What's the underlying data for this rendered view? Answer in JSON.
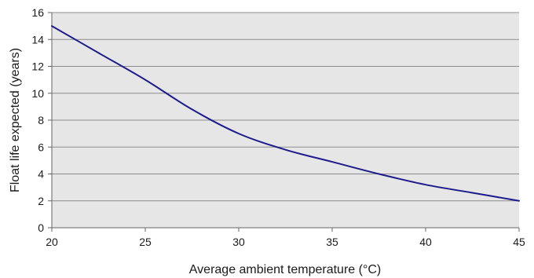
{
  "chart_data": {
    "type": "line",
    "title": "",
    "xlabel": "Average ambient temperature (°C)",
    "ylabel": "Float life expected (years)",
    "xlim": [
      20,
      45
    ],
    "ylim": [
      0,
      16
    ],
    "x_ticks": [
      20,
      25,
      30,
      35,
      40,
      45
    ],
    "y_ticks": [
      0,
      2,
      4,
      6,
      8,
      10,
      12,
      14,
      16
    ],
    "grid": "horizontal",
    "legend": "none",
    "series": [
      {
        "color": "#1f1a8c",
        "x": [
          20,
          22.5,
          25,
          27.5,
          30,
          32.5,
          35,
          37.5,
          40,
          42.5,
          45
        ],
        "y": [
          15,
          13,
          11,
          8.8,
          7,
          5.8,
          4.9,
          4,
          3.2,
          2.6,
          2
        ]
      }
    ]
  },
  "colors": {
    "plot_background": "#e6e6e6",
    "gridline": "#8c8c8c",
    "axis": "#666666",
    "line": "#1f1a8c"
  }
}
